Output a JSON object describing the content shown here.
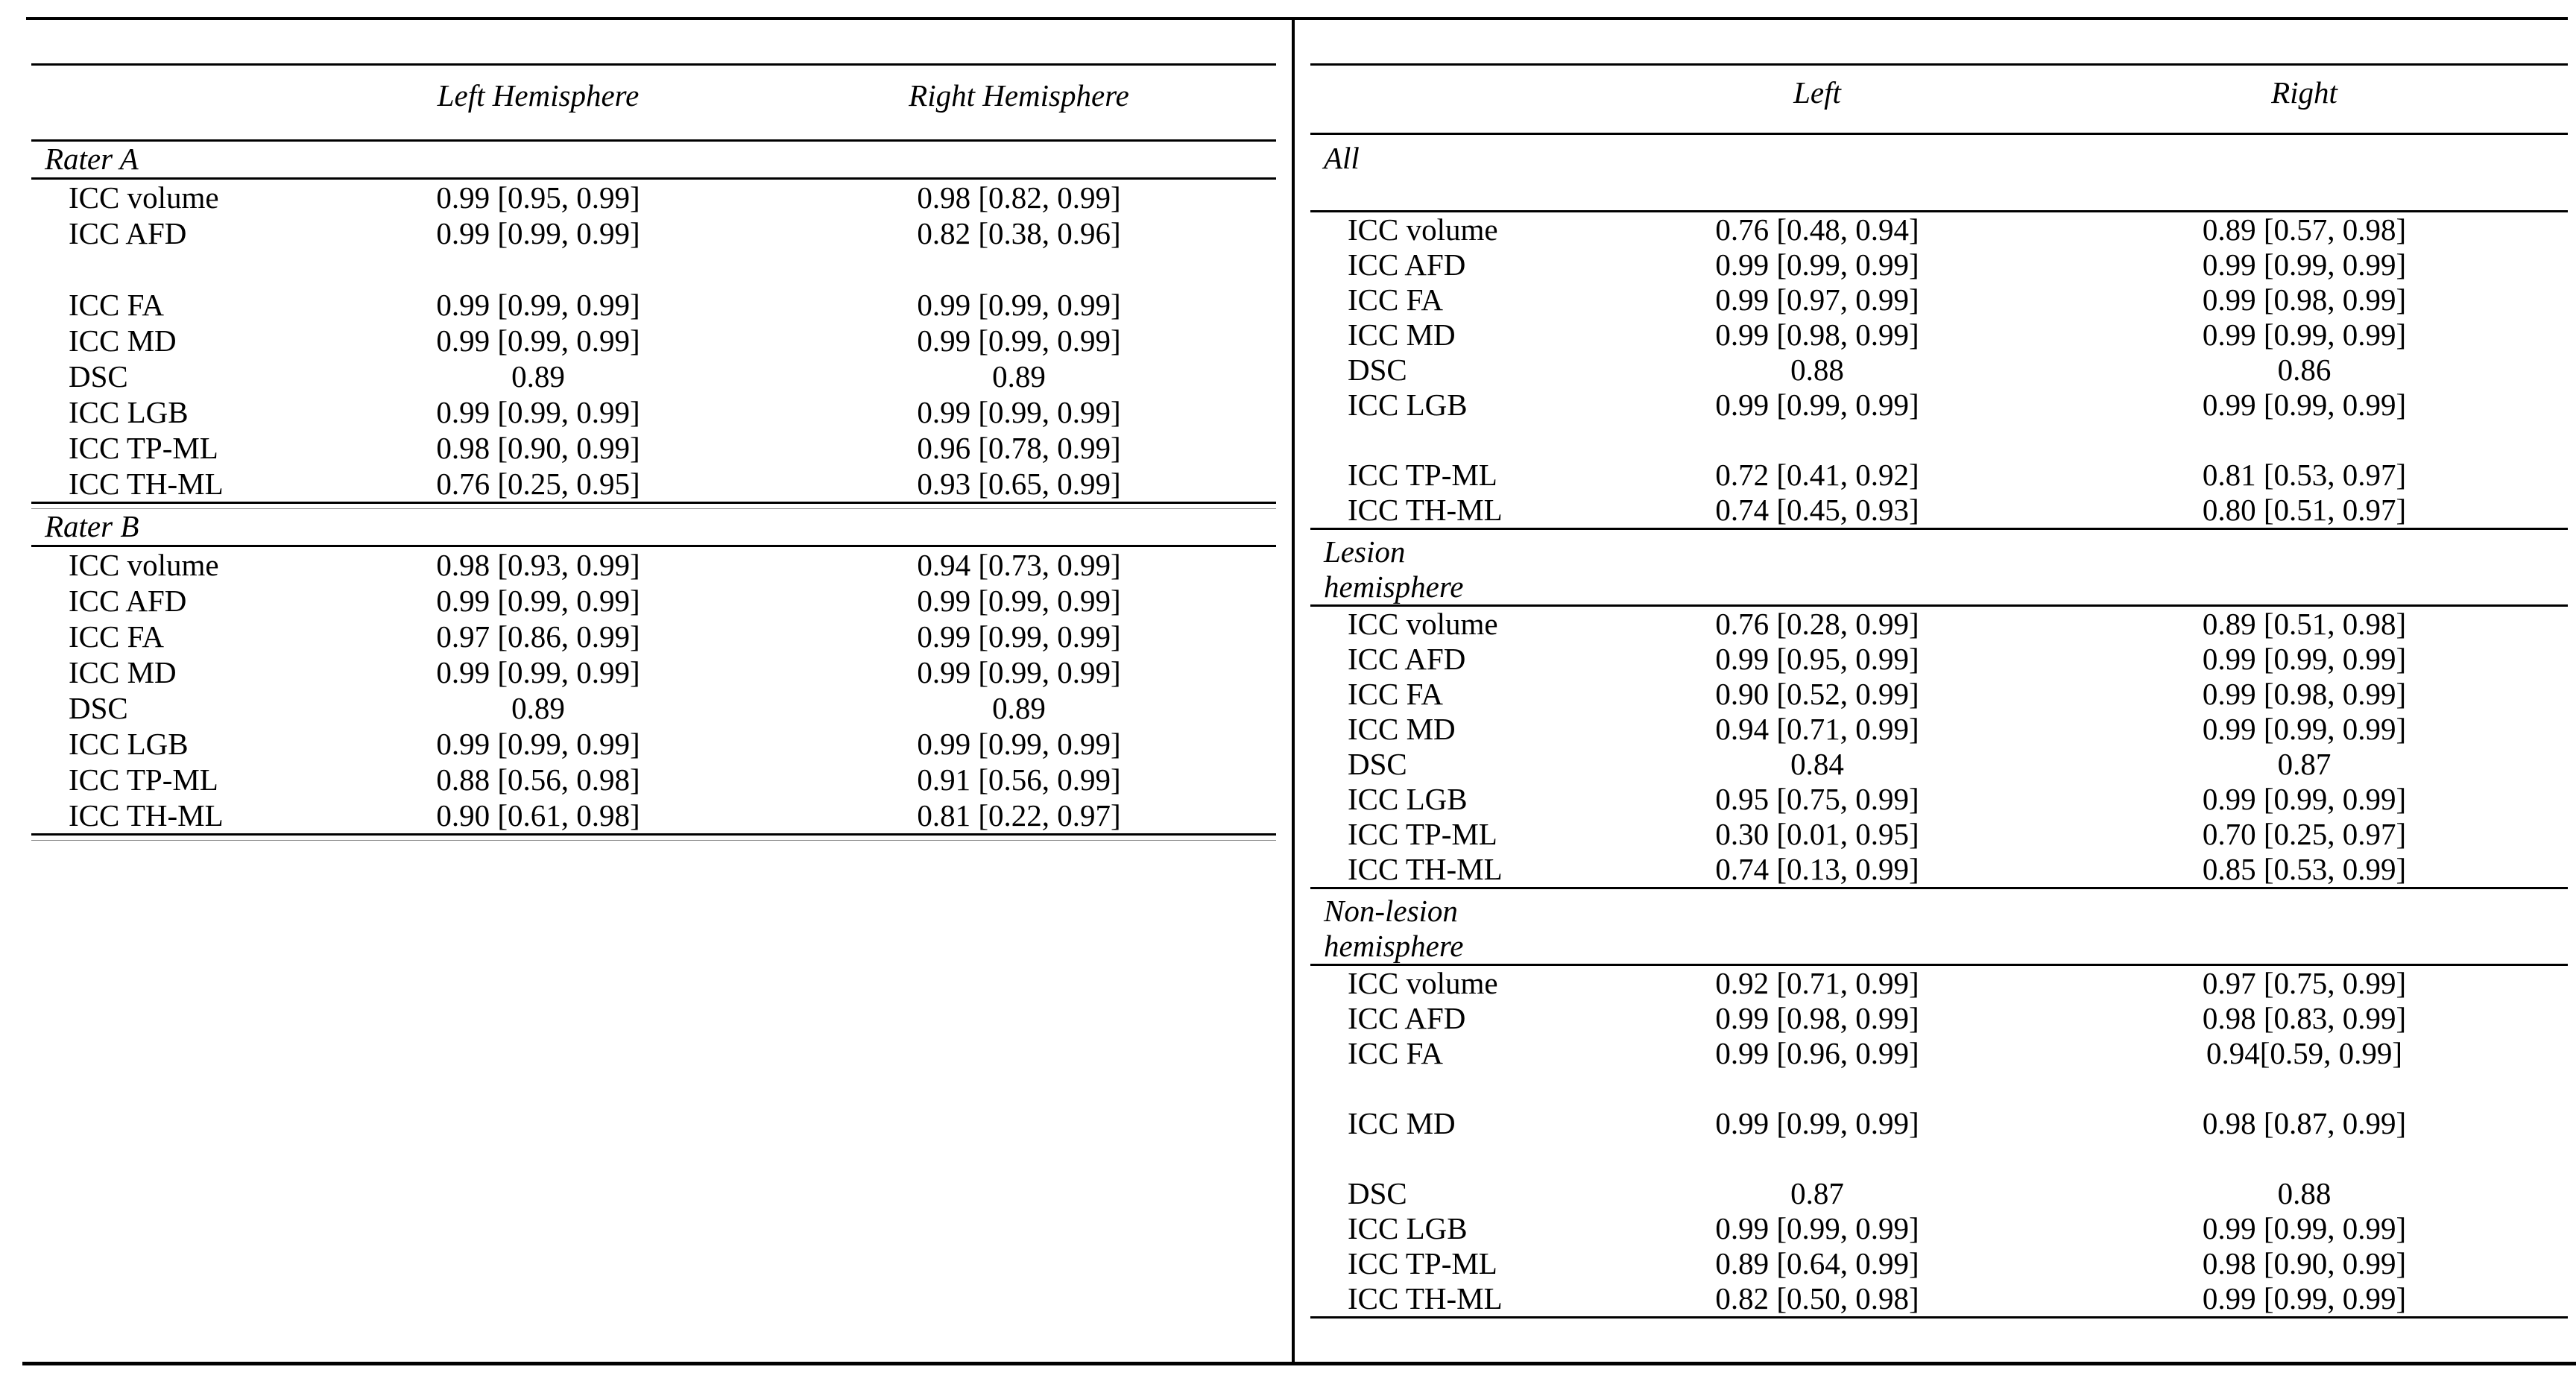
{
  "left_table": {
    "col_headers": [
      "Left Hemisphere",
      "Right Hemisphere"
    ],
    "sections": [
      {
        "label": "Rater A",
        "rows": [
          {
            "metric": "ICC volume",
            "left": "0.99 [0.95, 0.99]",
            "right": "0.98 [0.82, 0.99]"
          },
          {
            "metric": "ICC AFD",
            "left": "0.99 [0.99, 0.99]",
            "right": "0.82 [0.38, 0.96]"
          },
          {
            "spacer": true
          },
          {
            "metric": "ICC FA",
            "left": "0.99 [0.99, 0.99]",
            "right": "0.99 [0.99, 0.99]"
          },
          {
            "metric": "ICC MD",
            "left": "0.99 [0.99, 0.99]",
            "right": "0.99 [0.99, 0.99]"
          },
          {
            "metric": "DSC",
            "left": "0.89",
            "right": "0.89"
          },
          {
            "metric": "ICC LGB",
            "left": "0.99 [0.99, 0.99]",
            "right": "0.99 [0.99, 0.99]"
          },
          {
            "metric": "ICC TP-ML",
            "left": "0.98 [0.90, 0.99]",
            "right": "0.96 [0.78, 0.99]"
          },
          {
            "metric": "ICC TH-ML",
            "left": "0.76 [0.25, 0.95]",
            "right": "0.93 [0.65, 0.99]"
          }
        ]
      },
      {
        "label": "Rater B",
        "rows": [
          {
            "metric": "ICC volume",
            "left": "0.98 [0.93, 0.99]",
            "right": "0.94 [0.73, 0.99]"
          },
          {
            "metric": "ICC AFD",
            "left": "0.99 [0.99, 0.99]",
            "right": "0.99 [0.99, 0.99]"
          },
          {
            "metric": "ICC FA",
            "left": "0.97 [0.86, 0.99]",
            "right": "0.99 [0.99, 0.99]"
          },
          {
            "metric": "ICC MD",
            "left": "0.99 [0.99, 0.99]",
            "right": "0.99 [0.99, 0.99]"
          },
          {
            "metric": "DSC",
            "left": "0.89",
            "right": "0.89"
          },
          {
            "metric": "ICC LGB",
            "left": "0.99 [0.99, 0.99]",
            "right": "0.99 [0.99, 0.99]"
          },
          {
            "metric": "ICC TP-ML",
            "left": "0.88 [0.56, 0.98]",
            "right": "0.91 [0.56, 0.99]"
          },
          {
            "metric": "ICC TH-ML",
            "left": "0.90 [0.61, 0.98]",
            "right": "0.81 [0.22, 0.97]"
          }
        ]
      }
    ]
  },
  "right_table": {
    "col_headers": [
      "Left",
      "Right"
    ],
    "sections": [
      {
        "label_lines": [
          "All"
        ],
        "rows": [
          {
            "metric": "ICC volume",
            "left": "0.76 [0.48, 0.94]",
            "right": "0.89 [0.57, 0.98]"
          },
          {
            "metric": "ICC AFD",
            "left": "0.99 [0.99, 0.99]",
            "right": "0.99 [0.99, 0.99]"
          },
          {
            "metric": "ICC FA",
            "left": "0.99 [0.97, 0.99]",
            "right": "0.99 [0.98, 0.99]"
          },
          {
            "metric": "ICC MD",
            "left": "0.99 [0.98, 0.99]",
            "right": "0.99 [0.99, 0.99]"
          },
          {
            "metric": "DSC",
            "left": "0.88",
            "right": "0.86"
          },
          {
            "metric": "ICC LGB",
            "left": "0.99 [0.99, 0.99]",
            "right": "0.99 [0.99, 0.99]"
          },
          {
            "spacer": true
          },
          {
            "metric": "ICC TP-ML",
            "left": "0.72 [0.41, 0.92]",
            "right": "0.81 [0.53, 0.97]"
          },
          {
            "metric": "ICC TH-ML",
            "left": "0.74 [0.45, 0.93]",
            "right": "0.80 [0.51, 0.97]"
          }
        ]
      },
      {
        "label_lines": [
          "Lesion",
          "hemisphere"
        ],
        "rows": [
          {
            "metric": "ICC volume",
            "left": "0.76 [0.28, 0.99]",
            "right": "0.89 [0.51, 0.98]"
          },
          {
            "metric": "ICC AFD",
            "left": "0.99 [0.95, 0.99]",
            "right": "0.99 [0.99, 0.99]"
          },
          {
            "metric": "ICC FA",
            "left": "0.90 [0.52, 0.99]",
            "right": "0.99 [0.98, 0.99]"
          },
          {
            "metric": "ICC MD",
            "left": "0.94 [0.71, 0.99]",
            "right": "0.99 [0.99, 0.99]"
          },
          {
            "metric": "DSC",
            "left": "0.84",
            "right": "0.87"
          },
          {
            "metric": "ICC LGB",
            "left": "0.95 [0.75, 0.99]",
            "right": "0.99 [0.99, 0.99]"
          },
          {
            "metric": "ICC TP-ML",
            "left": "0.30 [0.01, 0.95]",
            "right": "0.70 [0.25, 0.97]"
          },
          {
            "metric": "ICC TH-ML",
            "left": "0.74 [0.13, 0.99]",
            "right": "0.85 [0.53, 0.99]"
          }
        ]
      },
      {
        "label_lines": [
          "Non-lesion",
          "hemisphere"
        ],
        "rows": [
          {
            "metric": "ICC volume",
            "left": "0.92 [0.71, 0.99]",
            "right": "0.97 [0.75, 0.99]"
          },
          {
            "metric": "ICC AFD",
            "left": "0.99 [0.98, 0.99]",
            "right": "0.98 [0.83, 0.99]"
          },
          {
            "metric": "ICC FA",
            "left": "0.99 [0.96, 0.99]",
            "right": "0.94[0.59, 0.99]"
          },
          {
            "spacer": true
          },
          {
            "metric": "ICC MD",
            "left": "0.99 [0.99, 0.99]",
            "right": "0.98 [0.87, 0.99]"
          },
          {
            "spacer": true
          },
          {
            "metric": "DSC",
            "left": "0.87",
            "right": "0.88"
          },
          {
            "metric": "ICC LGB",
            "left": "0.99 [0.99, 0.99]",
            "right": "0.99 [0.99, 0.99]"
          },
          {
            "metric": "ICC TP-ML",
            "left": "0.89 [0.64, 0.99]",
            "right": "0.98 [0.90, 0.99]"
          },
          {
            "metric": "ICC TH-ML",
            "left": "0.82 [0.50, 0.98]",
            "right": "0.99 [0.99, 0.99]"
          }
        ]
      }
    ]
  }
}
